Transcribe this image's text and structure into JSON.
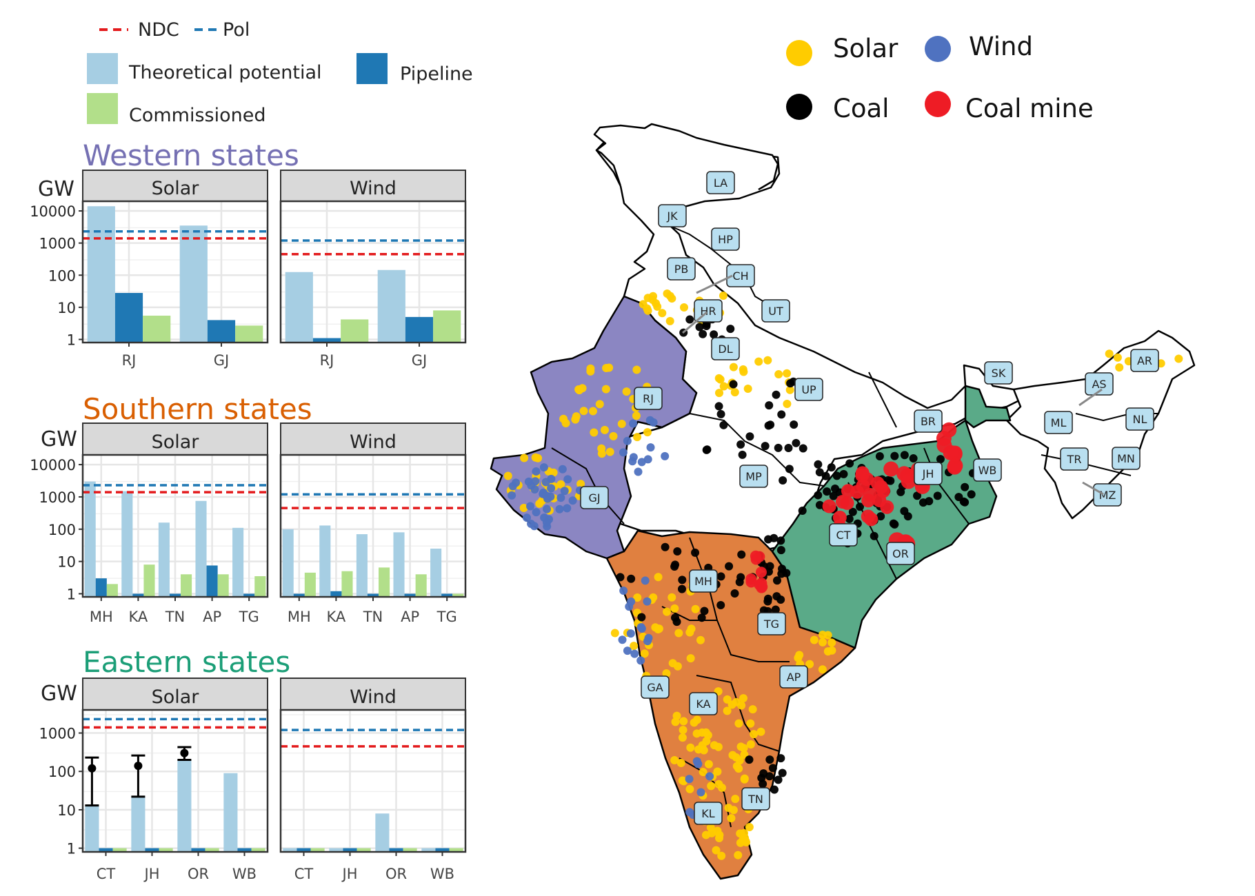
{
  "legend_bars": {
    "ndc": "NDC",
    "pol": "Pol",
    "theoretical": "Theoretical potential",
    "pipeline": "Pipeline",
    "commissioned": "Commissioned"
  },
  "legend_map": {
    "solar": "Solar",
    "wind": "Wind",
    "coal": "Coal",
    "coal_mine": "Coal mine"
  },
  "colors": {
    "theoretical": "#a6cee3",
    "pipeline": "#1f78b4",
    "commissioned": "#b2df8a",
    "ndc": "#e31a1c",
    "pol": "#1f78b4",
    "western": "#7570b3",
    "southern": "#d95f02",
    "eastern": "#1b9e77",
    "map_western": "#8b86c2",
    "map_southern": "#e08040",
    "map_eastern": "#5aaa88",
    "solar": "#ffcc00",
    "wind": "#4f72c0",
    "coal": "#000000",
    "coal_mine": "#ee1c25"
  },
  "y_axis_unit": "GW",
  "chart_data": [
    {
      "type": "bar",
      "region": "Western states",
      "facet": "Solar",
      "log_scale": true,
      "categories": [
        "RJ",
        "GJ"
      ],
      "series": [
        {
          "name": "Theoretical potential",
          "values": [
            14000,
            3500
          ]
        },
        {
          "name": "Pipeline",
          "values": [
            28,
            4
          ]
        },
        {
          "name": "Commissioned",
          "values": [
            5.5,
            2.7
          ]
        }
      ],
      "ref_lines": {
        "NDC": 1400,
        "Pol": 2300
      },
      "yticks": [
        "1",
        "10",
        "100",
        "1000",
        "10000"
      ],
      "ylim": [
        0.8,
        20000
      ]
    },
    {
      "type": "bar",
      "region": "Western states",
      "facet": "Wind",
      "log_scale": true,
      "categories": [
        "RJ",
        "GJ"
      ],
      "series": [
        {
          "name": "Theoretical potential",
          "values": [
            125,
            145
          ]
        },
        {
          "name": "Pipeline",
          "values": [
            1.1,
            5
          ]
        },
        {
          "name": "Commissioned",
          "values": [
            4.2,
            8
          ]
        }
      ],
      "ref_lines": {
        "NDC": 450,
        "Pol": 1200
      },
      "ylim": [
        0.8,
        20000
      ]
    },
    {
      "type": "bar",
      "region": "Southern states",
      "facet": "Solar",
      "log_scale": true,
      "categories": [
        "MH",
        "KA",
        "TN",
        "AP",
        "TG"
      ],
      "series": [
        {
          "name": "Theoretical potential",
          "values": [
            3000,
            1500,
            160,
            750,
            110
          ]
        },
        {
          "name": "Pipeline",
          "values": [
            3,
            1,
            1,
            7.5,
            1
          ]
        },
        {
          "name": "Commissioned",
          "values": [
            2,
            8,
            4,
            4,
            3.5
          ]
        }
      ],
      "ref_lines": {
        "NDC": 1400,
        "Pol": 2300
      },
      "yticks": [
        "1",
        "10",
        "100",
        "1000",
        "10000"
      ],
      "ylim": [
        0.8,
        20000
      ]
    },
    {
      "type": "bar",
      "region": "Southern states",
      "facet": "Wind",
      "log_scale": true,
      "categories": [
        "MH",
        "KA",
        "TN",
        "AP",
        "TG"
      ],
      "series": [
        {
          "name": "Theoretical potential",
          "values": [
            100,
            130,
            70,
            80,
            25
          ]
        },
        {
          "name": "Pipeline",
          "values": [
            1,
            1.2,
            1,
            1,
            1
          ]
        },
        {
          "name": "Commissioned",
          "values": [
            4.5,
            5,
            6.5,
            4,
            1
          ]
        }
      ],
      "ref_lines": {
        "NDC": 450,
        "Pol": 1200
      },
      "ylim": [
        0.8,
        20000
      ]
    },
    {
      "type": "bar",
      "region": "Eastern states",
      "facet": "Solar",
      "log_scale": true,
      "categories": [
        "CT",
        "JH",
        "OR",
        "WB"
      ],
      "series": [
        {
          "name": "Theoretical potential",
          "values": [
            13,
            22,
            200,
            90
          ]
        },
        {
          "name": "Pipeline",
          "values": [
            1,
            1,
            1,
            1
          ]
        },
        {
          "name": "Commissioned",
          "values": [
            1,
            1,
            1,
            1
          ]
        }
      ],
      "error_bars": [
        {
          "category": "CT",
          "point": 120,
          "low": 13,
          "high": 230
        },
        {
          "category": "JH",
          "point": 140,
          "low": 22,
          "high": 260
        },
        {
          "category": "OR",
          "point": 300,
          "low": 200,
          "high": 430
        }
      ],
      "ref_lines": {
        "NDC": 1400,
        "Pol": 2300
      },
      "yticks": [
        "1",
        "10",
        "100",
        "1000"
      ],
      "ylim": [
        0.8,
        4000
      ]
    },
    {
      "type": "bar",
      "region": "Eastern states",
      "facet": "Wind",
      "log_scale": true,
      "categories": [
        "CT",
        "JH",
        "OR",
        "WB"
      ],
      "series": [
        {
          "name": "Theoretical potential",
          "values": [
            1,
            1,
            8,
            1
          ]
        },
        {
          "name": "Pipeline",
          "values": [
            1,
            1,
            1,
            1
          ]
        },
        {
          "name": "Commissioned",
          "values": [
            1,
            1,
            1,
            1
          ]
        }
      ],
      "ref_lines": {
        "NDC": 450,
        "Pol": 1200
      },
      "ylim": [
        0.8,
        4000
      ]
    }
  ],
  "map": {
    "state_labels": [
      "LA",
      "JK",
      "HP",
      "PB",
      "CH",
      "HR",
      "UT",
      "DL",
      "UP",
      "RJ",
      "SK",
      "AR",
      "AS",
      "ML",
      "NL",
      "BR",
      "JH",
      "WB",
      "TR",
      "MN",
      "MZ",
      "GJ",
      "MP",
      "CT",
      "OR",
      "MH",
      "TG",
      "AP",
      "GA",
      "KA",
      "TN",
      "KL"
    ]
  }
}
